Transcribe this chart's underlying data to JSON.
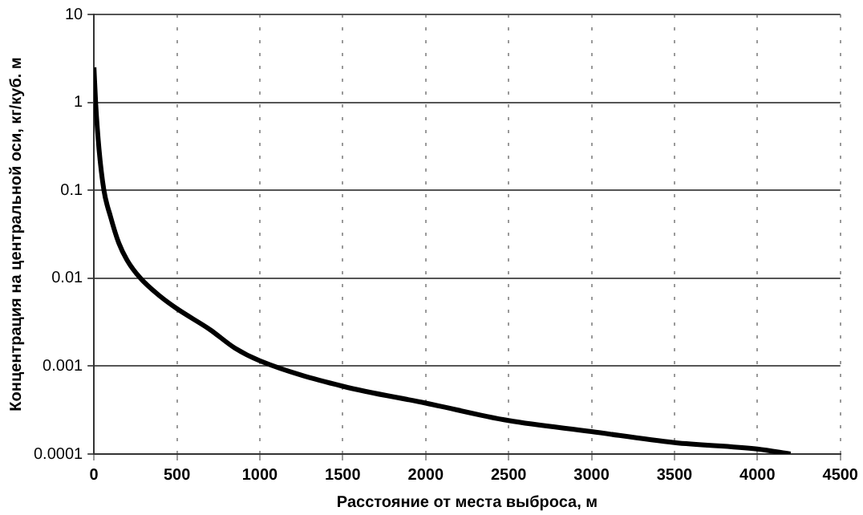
{
  "chart_data": {
    "type": "line",
    "xlabel": "Расстояние от места выброса, м",
    "ylabel": "Концентрация на центральной оси, кг/куб. м",
    "log": "y",
    "grid": true,
    "legend": false,
    "marker": "none",
    "line_style": "solid",
    "xlim": [
      0,
      4500
    ],
    "xticks": [
      0,
      500,
      1000,
      1500,
      2000,
      2500,
      3000,
      3500,
      4000,
      4500
    ],
    "ylim": [
      0.0001,
      10
    ],
    "yticks": [
      0.0001,
      0.001,
      0.01,
      0.1,
      1,
      10
    ],
    "series": [
      {
        "color": "#000000",
        "x": [
          0,
          10,
          30,
          60,
          100,
          150,
          200,
          280,
          400,
          500,
          700,
          850,
          1000,
          1500,
          2000,
          2500,
          3000,
          3500,
          4000,
          4200
        ],
        "values": [
          2.5,
          1,
          0.3,
          0.1,
          0.05,
          0.025,
          0.016,
          0.01,
          0.0062,
          0.0045,
          0.0026,
          0.0016,
          0.00115,
          0.00059,
          0.00038,
          0.00024,
          0.00018,
          0.000135,
          0.000114,
          0.0001
        ]
      }
    ]
  }
}
